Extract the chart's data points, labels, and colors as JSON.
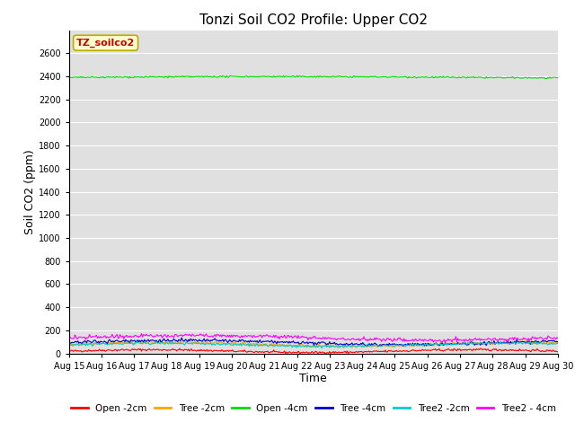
{
  "title": "Tonzi Soil CO2 Profile: Upper CO2",
  "xlabel": "Time",
  "ylabel": "Soil CO2 (ppm)",
  "ylim": [
    0,
    2800
  ],
  "yticks": [
    0,
    200,
    400,
    600,
    800,
    1000,
    1200,
    1400,
    1600,
    1800,
    2000,
    2200,
    2400,
    2600
  ],
  "date_start": 15,
  "date_end": 30,
  "n_points": 500,
  "series": [
    {
      "label": "Open -2cm",
      "color": "#ff0000",
      "base": 20,
      "amp": 12,
      "freq": 1.5
    },
    {
      "label": "Tree -2cm",
      "color": "#ffa500",
      "base": 80,
      "amp": 18,
      "freq": 1.3
    },
    {
      "label": "Open -4cm",
      "color": "#00dd00",
      "base": 2390,
      "amp": 8,
      "freq": 0.6
    },
    {
      "label": "Tree -4cm",
      "color": "#0000cc",
      "base": 95,
      "amp": 18,
      "freq": 1.1
    },
    {
      "label": "Tree2 -2cm",
      "color": "#00cccc",
      "base": 75,
      "amp": 14,
      "freq": 1.4
    },
    {
      "label": "Tree2 - 4cm",
      "color": "#ff00ff",
      "base": 135,
      "amp": 20,
      "freq": 1.0
    }
  ],
  "legend_label_box": "TZ_soilco2",
  "legend_box_facecolor": "#ffffcc",
  "legend_box_edgecolor": "#bbaa00",
  "legend_box_textcolor": "#cc0000",
  "background_color": "#e0e0e0",
  "fig_background": "#ffffff",
  "title_fontsize": 11,
  "axis_label_fontsize": 9,
  "tick_fontsize": 7
}
